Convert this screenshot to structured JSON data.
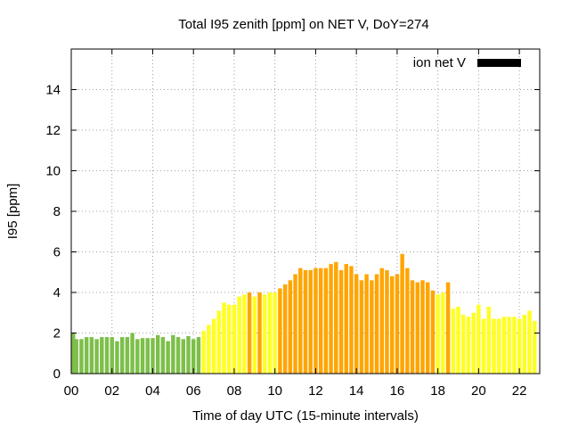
{
  "chart_data": {
    "type": "bar",
    "title": "Total I95 zenith [ppm] on NET V, DoY=274",
    "xlabel": "Time of day UTC (15-minute intervals)",
    "ylabel": "I95 [ppm]",
    "xlim": [
      0,
      23
    ],
    "ylim": [
      0,
      16
    ],
    "bar_interval_hours": 0.25,
    "x_tick_values": [
      0,
      2,
      4,
      6,
      8,
      10,
      12,
      14,
      16,
      18,
      20,
      22
    ],
    "x_tick_labels": [
      "00",
      "02",
      "04",
      "06",
      "08",
      "10",
      "12",
      "14",
      "16",
      "18",
      "20",
      "22"
    ],
    "y_ticks": [
      0,
      2,
      4,
      6,
      8,
      10,
      12,
      14
    ],
    "grid": true,
    "legend": {
      "label": "ion net V",
      "color": "#000000",
      "placement": "top-right"
    },
    "colors": {
      "green": "#7dbf4a",
      "yellow": "#ffff22",
      "orange": "#ffa500"
    },
    "values": [
      2.0,
      1.7,
      1.7,
      1.8,
      1.8,
      1.7,
      1.8,
      1.8,
      1.8,
      1.6,
      1.8,
      1.8,
      2.0,
      1.7,
      1.75,
      1.75,
      1.75,
      1.9,
      1.8,
      1.6,
      1.9,
      1.8,
      1.7,
      1.85,
      1.7,
      1.8,
      2.1,
      2.4,
      2.7,
      3.1,
      3.5,
      3.4,
      3.4,
      3.8,
      3.9,
      4.0,
      3.8,
      4.0,
      3.9,
      4.0,
      4.0,
      4.2,
      4.4,
      4.6,
      4.9,
      5.2,
      5.1,
      5.1,
      5.2,
      5.2,
      5.2,
      5.4,
      5.5,
      5.1,
      5.4,
      5.3,
      4.9,
      4.6,
      4.9,
      4.6,
      4.9,
      5.2,
      5.1,
      4.8,
      4.9,
      5.9,
      5.2,
      4.6,
      4.5,
      4.6,
      4.5,
      4.1,
      3.9,
      4.0,
      4.5,
      3.2,
      3.3,
      2.9,
      2.8,
      3.0,
      3.4,
      2.7,
      3.3,
      2.7,
      2.7,
      2.8,
      2.8,
      2.8,
      2.7,
      2.9,
      3.1,
      2.6
    ],
    "bar_colors": [
      "green",
      "green",
      "green",
      "green",
      "green",
      "green",
      "green",
      "green",
      "green",
      "green",
      "green",
      "green",
      "green",
      "green",
      "green",
      "green",
      "green",
      "green",
      "green",
      "green",
      "green",
      "green",
      "green",
      "green",
      "green",
      "green",
      "yellow",
      "yellow",
      "yellow",
      "yellow",
      "yellow",
      "yellow",
      "yellow",
      "yellow",
      "yellow",
      "orange",
      "yellow",
      "orange",
      "yellow",
      "yellow",
      "yellow",
      "orange",
      "orange",
      "orange",
      "orange",
      "orange",
      "orange",
      "orange",
      "orange",
      "orange",
      "orange",
      "orange",
      "orange",
      "orange",
      "orange",
      "orange",
      "orange",
      "orange",
      "orange",
      "orange",
      "orange",
      "orange",
      "orange",
      "orange",
      "orange",
      "orange",
      "orange",
      "orange",
      "orange",
      "orange",
      "orange",
      "orange",
      "yellow",
      "yellow",
      "orange",
      "yellow",
      "yellow",
      "yellow",
      "yellow",
      "yellow",
      "yellow",
      "yellow",
      "yellow",
      "yellow",
      "yellow",
      "yellow",
      "yellow",
      "yellow",
      "yellow",
      "yellow",
      "yellow",
      "yellow"
    ]
  }
}
